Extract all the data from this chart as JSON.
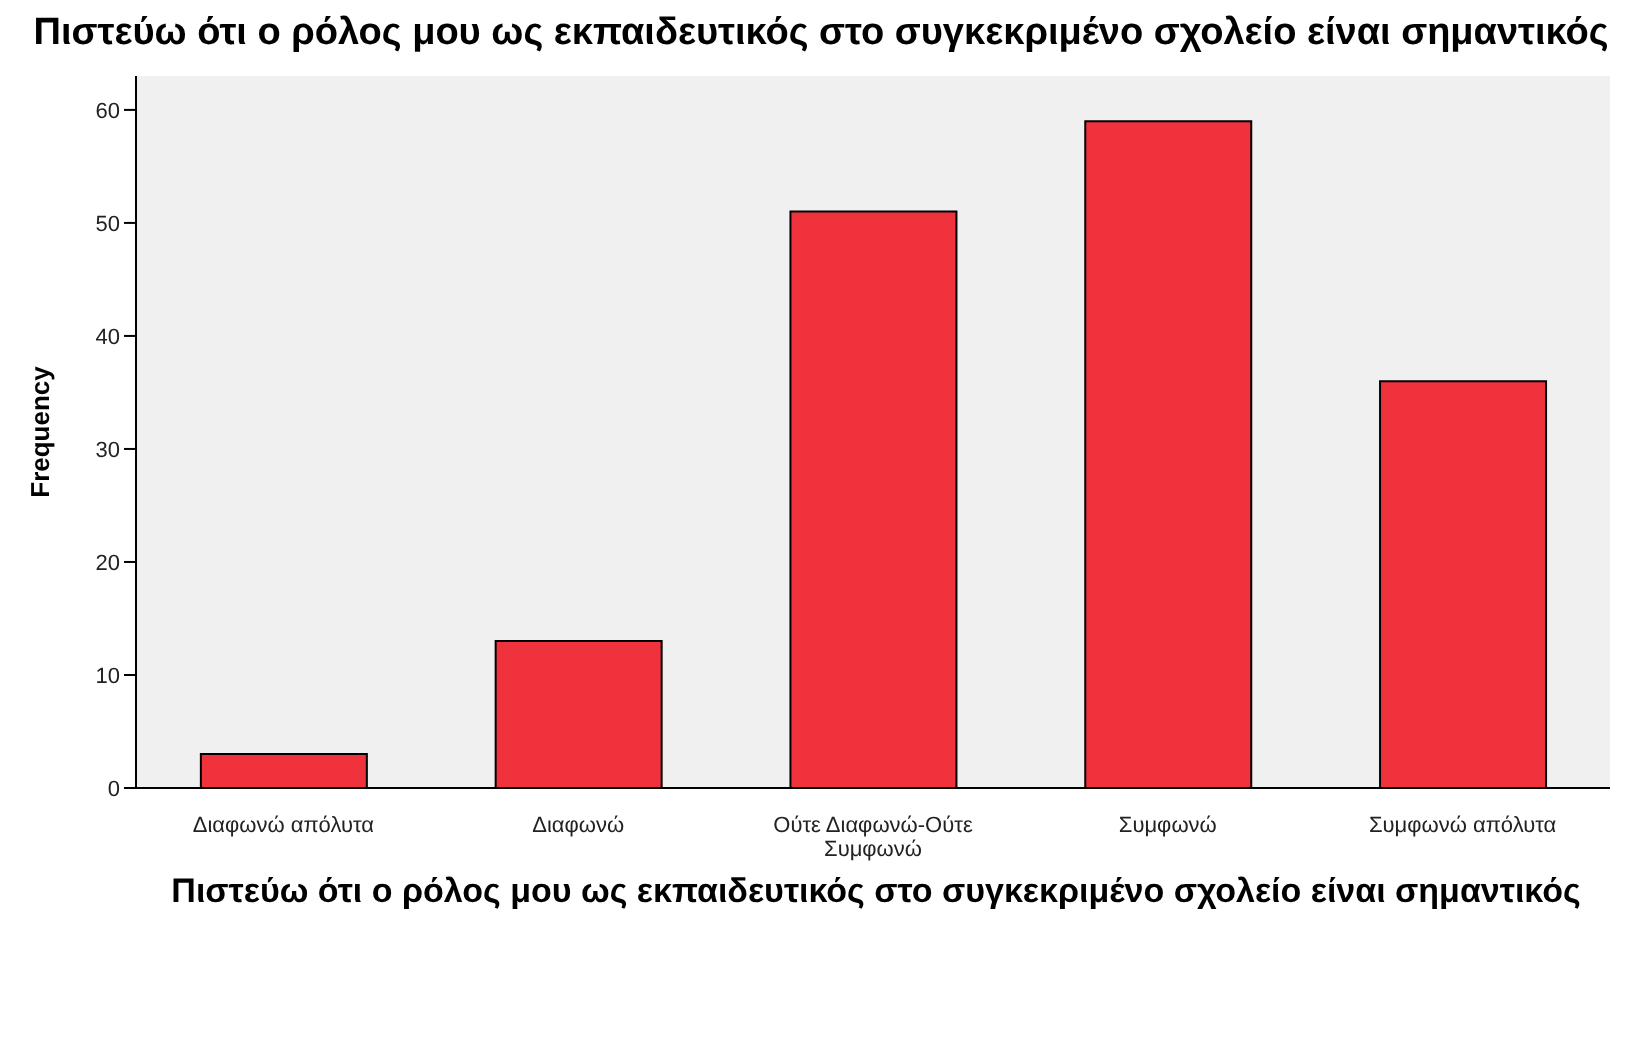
{
  "chart_data": {
    "type": "bar",
    "title": "Πιστεύω ότι ο ρόλος μου ως εκπαιδευτικός στο συγκεκριμένο σχολείο είναι σημαντικός",
    "xlabel": "Πιστεύω ότι ο ρόλος μου ως εκπαιδευτικός στο συγκεκριμένο σχολείο είναι σημαντικός",
    "ylabel": "Frequency",
    "categories": [
      "Διαφωνώ απόλυτα",
      "Διαφωνώ",
      "Ούτε Διαφωνώ-Ούτε Συμφωνώ",
      "Συμφωνώ",
      "Συμφωνώ απόλυτα"
    ],
    "values": [
      3,
      13,
      51,
      59,
      36
    ],
    "color": "#f0323c",
    "ylim": [
      0,
      63
    ],
    "yticks": [
      0,
      10,
      20,
      30,
      40,
      50,
      60
    ],
    "grid": false
  }
}
